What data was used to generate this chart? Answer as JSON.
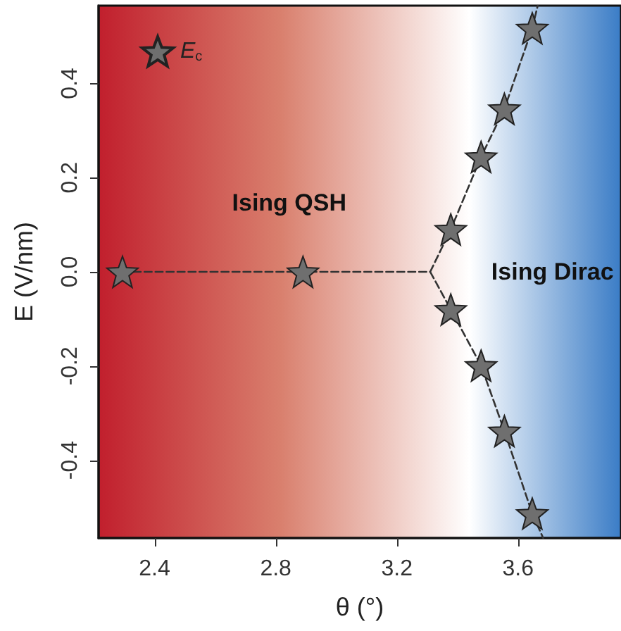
{
  "chart_data": {
    "type": "scatter",
    "xlabel": "θ (°)",
    "ylabel": "E (V/nm)",
    "xlim": [
      2.215,
      3.94
    ],
    "xticks": [
      2.4,
      2.8,
      3.2,
      3.6
    ],
    "ylim": [
      -0.565,
      0.565
    ],
    "yticks": [
      -0.4,
      -0.2,
      {
        "value": 0,
        "label": "0.0"
      },
      0.2,
      0.4
    ],
    "grid": false,
    "legend": "top left",
    "line_style": "dashed",
    "annotations": [
      "Ising QSH",
      "Ising Dirac"
    ],
    "series": [
      {
        "type": "line",
        "marker": "none",
        "color": "#333333",
        "x": [
          2.294,
          3.31,
          3.378,
          3.478,
          3.555,
          3.647,
          3.665
        ],
        "values": [
          0,
          0,
          0.09,
          0.244,
          0.346,
          0.517,
          0.565
        ]
      },
      {
        "type": "line",
        "marker": "none",
        "color": "#333333",
        "x": [
          3.31,
          3.378,
          3.478,
          3.555,
          3.647,
          3.683
        ],
        "values": [
          0,
          -0.08,
          -0.199,
          -0.338,
          -0.513,
          -0.565
        ]
      },
      {
        "marker": "star",
        "name": "E$_{c}$",
        "color": "#6f6f6f",
        "x": [
          2.294,
          2.89,
          3.378,
          3.478,
          3.555,
          3.647,
          3.378,
          3.478,
          3.555,
          3.647
        ],
        "values": [
          0,
          0,
          0.09,
          0.244,
          0.346,
          0.517,
          -0.08,
          -0.199,
          -0.338,
          -0.513
        ]
      }
    ]
  }
}
